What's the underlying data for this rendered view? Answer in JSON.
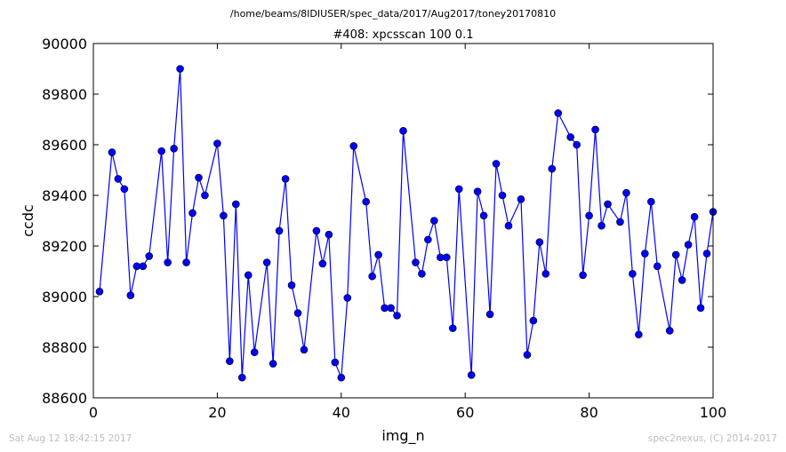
{
  "figure": {
    "suptitle": "/home/beams/8IDIUSER/spec_data/2017/Aug2017/toney20170810",
    "footer_left": "Sat Aug 12 18:42:15 2017",
    "footer_right": "spec2nexus, (C) 2014-2017"
  },
  "chart_data": {
    "type": "line",
    "title": "#408: xpcsscan 100 0.1",
    "xlabel": "img_n",
    "ylabel": "ccdc",
    "xlim": [
      0,
      100
    ],
    "ylim": [
      88600,
      90000
    ],
    "xticks": [
      "0",
      "20",
      "40",
      "60",
      "80",
      "100"
    ],
    "yticks": [
      "88600",
      "88800",
      "89000",
      "89200",
      "89400",
      "89600",
      "89800",
      "90000"
    ],
    "grid": false,
    "marker": "circle",
    "color": "#0000ff",
    "series": [
      {
        "x": [
          1,
          3,
          4,
          5,
          6,
          7,
          8,
          9,
          11,
          12,
          13,
          14,
          15,
          16,
          17,
          18,
          20,
          21,
          22,
          23,
          24,
          25,
          26,
          28,
          29,
          30,
          31,
          32,
          33,
          34,
          36,
          37,
          38,
          39,
          40,
          41,
          42,
          44,
          45,
          46,
          47,
          48,
          49,
          50,
          52,
          53,
          54,
          55,
          56,
          57,
          58,
          59,
          61,
          62,
          63,
          64,
          65,
          66,
          67,
          69,
          70,
          71,
          72,
          73,
          74,
          75,
          77,
          78,
          79,
          80,
          81,
          82,
          83,
          85,
          86,
          87,
          88,
          89,
          90,
          91,
          93,
          94,
          95,
          96,
          97,
          98,
          99,
          100
        ],
        "values": [
          89020,
          89570,
          89465,
          89425,
          89005,
          89120,
          89120,
          89160,
          89575,
          89135,
          89585,
          89900,
          89135,
          89330,
          89470,
          89400,
          89605,
          89320,
          88745,
          89365,
          88680,
          89085,
          88780,
          89135,
          88735,
          89260,
          89465,
          89045,
          88935,
          88790,
          89260,
          89130,
          89245,
          88740,
          88680,
          88995,
          89595,
          89375,
          89080,
          89165,
          88955,
          88955,
          88925,
          89655,
          89135,
          89090,
          89225,
          89300,
          89155,
          89155,
          88875,
          89425,
          88690,
          89415,
          89320,
          88930,
          89525,
          89400,
          89280,
          89385,
          88770,
          88905,
          89215,
          89090,
          89505,
          89725,
          89630,
          89600,
          89085,
          89320,
          89660,
          89280,
          89365,
          89295,
          89410,
          89090,
          88850,
          89170,
          89375,
          89120,
          88865,
          89165,
          89065,
          89205,
          89315,
          88955,
          89170,
          89335
        ]
      }
    ]
  }
}
